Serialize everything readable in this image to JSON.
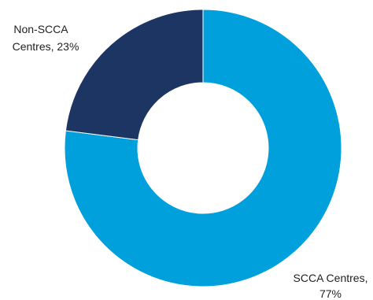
{
  "chart_data": {
    "type": "pie",
    "donut": true,
    "title": "",
    "slices": [
      {
        "label": "SCCA Centres",
        "value": 77,
        "pct_text": "77%",
        "color": "#00a0dc"
      },
      {
        "label": "Non-SCCA Centres",
        "value": 23,
        "pct_text": "23%",
        "color": "#1d3563"
      }
    ],
    "start_angle_deg": 0,
    "direction": "clockwise"
  },
  "labels": {
    "non_scca_line1": "Non-SCCA",
    "non_scca_line2": "Centres, 23%",
    "scca_line1": "SCCA Centres,",
    "scca_line2": "77%"
  }
}
